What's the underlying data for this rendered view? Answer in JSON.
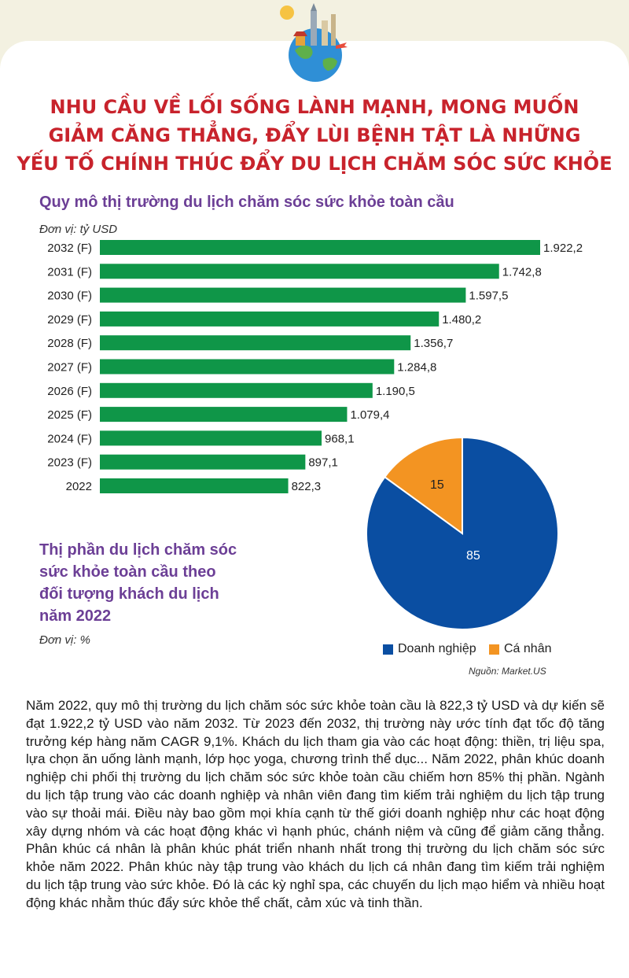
{
  "headline": [
    "NHU CẦU VỀ LỐI SỐNG LÀNH MẠNH, MONG MUỐN",
    "GIẢM CĂNG THẲNG, ĐẨY LÙI BỆNH TẬT LÀ NHỮNG",
    "YẾU TỐ CHÍNH THÚC ĐẨY DU LỊCH CHĂM SÓC SỨC KHỎE"
  ],
  "colors": {
    "headline": "#c8232c",
    "subtitle": "#6c3f96",
    "bar": "#0f9648",
    "pie_corporate": "#0a4ea2",
    "pie_individual": "#f39422"
  },
  "chart_data": [
    {
      "type": "bar",
      "orientation": "horizontal",
      "title": "Quy mô thị trường du lịch chăm sóc sức khỏe toàn cầu",
      "unit": "Đơn vị: tỷ USD",
      "categories": [
        "2032 (F)",
        "2031 (F)",
        "2030 (F)",
        "2029 (F)",
        "2028 (F)",
        "2027 (F)",
        "2026 (F)",
        "2025 (F)",
        "2024 (F)",
        "2023 (F)",
        "2022"
      ],
      "values": [
        1922.2,
        1742.8,
        1597.5,
        1480.2,
        1356.7,
        1284.8,
        1190.5,
        1079.4,
        968.1,
        897.1,
        822.3
      ],
      "value_labels": [
        "1.922,2",
        "1.742,8",
        "1.597,5",
        "1.480,2",
        "1.356,7",
        "1.284,8",
        "1.190,5",
        "1.079,4",
        "968,1",
        "897,1",
        "822,3"
      ],
      "xlim": [
        0,
        1922.2
      ]
    },
    {
      "type": "pie",
      "title_lines": [
        "Thị phần du lịch chăm sóc",
        "sức khỏe toàn cầu theo",
        "đối tượng khách du lịch",
        "năm 2022"
      ],
      "unit": "Đơn vị: %",
      "slices": [
        {
          "name": "Doanh nghiệp",
          "value": 85,
          "color": "#0a4ea2"
        },
        {
          "name": "Cá nhân",
          "value": 15,
          "color": "#f39422"
        }
      ],
      "legend": [
        "Doanh nghiệp",
        "Cá nhân"
      ],
      "legend_position": "bottom"
    }
  ],
  "source": "Nguồn: Market.US",
  "body": "Năm 2022, quy mô thị trường du lịch chăm sóc sức khỏe toàn cầu là 822,3 tỷ USD và dự kiến sẽ đạt 1.922,2 tỷ USD vào năm 2032. Từ 2023 đến 2032, thị trường này ước tính đạt tốc độ tăng trưởng kép hàng năm CAGR 9,1%. Khách du lịch tham gia vào các hoạt động: thiền, trị liệu spa, lựa chọn ăn uống lành mạnh, lớp học yoga, chương trình thể dục... Năm 2022, phân khúc doanh nghiệp chi phối thị trường du lịch chăm sóc sức khỏe toàn cầu chiếm hơn 85% thị phần. Ngành du lịch tập trung vào các doanh nghiệp và nhân viên đang tìm kiếm trải nghiệm du lịch tập trung vào sự thoải mái. Điều này bao gồm mọi khía cạnh từ thế giới doanh nghiệp như các hoạt động xây dựng nhóm và các hoạt động khác vì hạnh phúc, chánh niệm và cũng để giảm căng thẳng. Phân khúc cá nhân là phân khúc phát triển nhanh nhất trong thị trường du lịch chăm sóc sức khỏe năm 2022. Phân khúc này tập trung vào khách du lịch cá nhân đang tìm kiếm trải nghiệm du lịch tập trung vào sức khỏe. Đó là các kỳ nghỉ spa, các chuyến du lịch mạo hiểm và nhiều hoạt động khác nhằm thúc đẩy sức khỏe thể chất, cảm xúc và tinh thần."
}
